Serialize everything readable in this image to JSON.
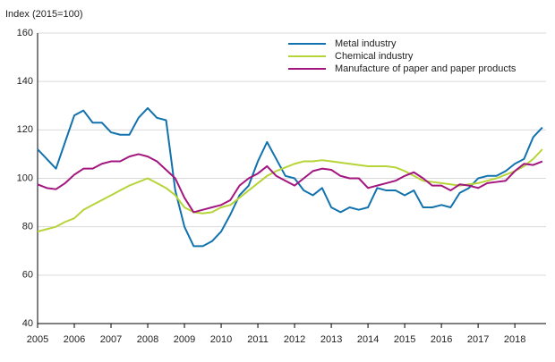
{
  "chart_data": {
    "type": "line",
    "y_label": "Index (2015=100)",
    "x": [
      2005,
      2005.25,
      2005.5,
      2005.75,
      2006,
      2006.25,
      2006.5,
      2006.75,
      2007,
      2007.25,
      2007.5,
      2007.75,
      2008,
      2008.25,
      2008.5,
      2008.75,
      2009,
      2009.25,
      2009.5,
      2009.75,
      2010,
      2010.25,
      2010.5,
      2010.75,
      2011,
      2011.25,
      2011.5,
      2011.75,
      2012,
      2012.25,
      2012.5,
      2012.75,
      2013,
      2013.25,
      2013.5,
      2013.75,
      2014,
      2014.25,
      2014.5,
      2014.75,
      2015,
      2015.25,
      2015.5,
      2015.75,
      2016,
      2016.25,
      2016.5,
      2016.75,
      2017,
      2017.25,
      2017.5,
      2017.75,
      2018,
      2018.25,
      2018.5,
      2018.75
    ],
    "series": [
      {
        "name": "Metal industry",
        "color": "#1172ad",
        "values": [
          112,
          108,
          104,
          115,
          126,
          128,
          123,
          123,
          119,
          118,
          118,
          125,
          129,
          125,
          124,
          95,
          80,
          72,
          72,
          74,
          78,
          85,
          93,
          97,
          107,
          115,
          108,
          101,
          100,
          95,
          93,
          96,
          88,
          86,
          88,
          87,
          88,
          96,
          95,
          95,
          93,
          95,
          88,
          88,
          89,
          88,
          94,
          96,
          100,
          101,
          101,
          103,
          106,
          108,
          117,
          121
        ]
      },
      {
        "name": "Chemical industry",
        "color": "#b6d438",
        "values": [
          78,
          79,
          80,
          82,
          83.5,
          87,
          89,
          91,
          93,
          95,
          97,
          98.5,
          100,
          98,
          96,
          93,
          88,
          86,
          85.5,
          86,
          88,
          89,
          92,
          95,
          98,
          101,
          103,
          104.5,
          106,
          107,
          107,
          107.5,
          107,
          106.5,
          106,
          105.5,
          105,
          105,
          105,
          104.5,
          103,
          101,
          99,
          98.5,
          98,
          97.5,
          97,
          97.5,
          98,
          99,
          100,
          101.5,
          103,
          105,
          108,
          112
        ]
      },
      {
        "name": "Manufacture of paper and paper products",
        "color": "#a3157f",
        "values": [
          97.5,
          96,
          95.5,
          98,
          101.5,
          104,
          104,
          106,
          107,
          107,
          109,
          110,
          109,
          107,
          103.5,
          100,
          92,
          86,
          87,
          88,
          89,
          91,
          97,
          100,
          102,
          105,
          101,
          99,
          97,
          100,
          103,
          104,
          103.5,
          101,
          100,
          100,
          96,
          97,
          98,
          99,
          101,
          102.5,
          100,
          97,
          97,
          95,
          97.5,
          97,
          96,
          98,
          98.5,
          99,
          103,
          106,
          105.5,
          107
        ]
      }
    ],
    "xlim": [
      2005,
      2018.85
    ],
    "xticks": [
      2005,
      2006,
      2007,
      2008,
      2009,
      2010,
      2011,
      2012,
      2013,
      2014,
      2015,
      2016,
      2017,
      2018
    ],
    "ylim": [
      40,
      160
    ],
    "yticks": [
      40,
      60,
      80,
      100,
      120,
      140,
      160
    ],
    "grid": true,
    "legend": "top-right"
  }
}
